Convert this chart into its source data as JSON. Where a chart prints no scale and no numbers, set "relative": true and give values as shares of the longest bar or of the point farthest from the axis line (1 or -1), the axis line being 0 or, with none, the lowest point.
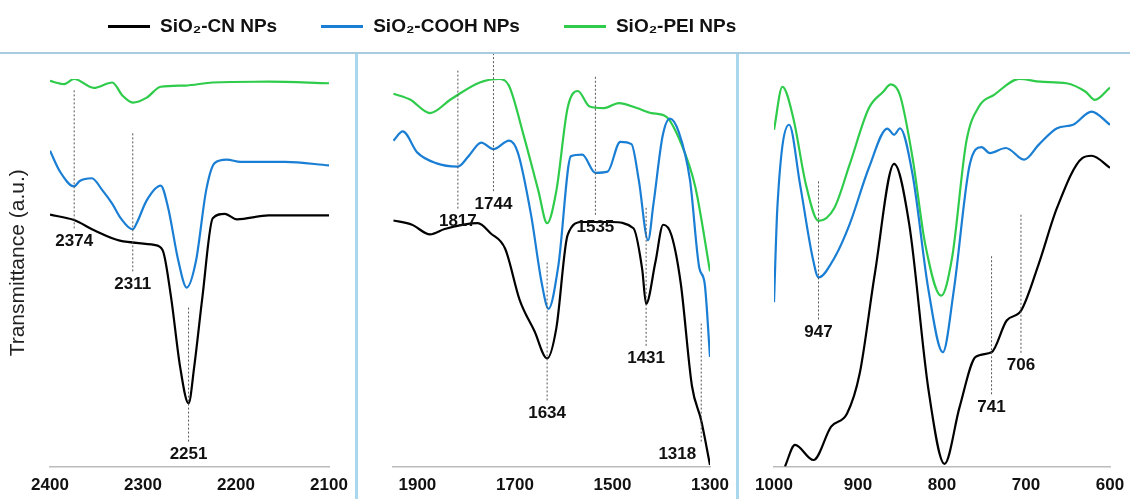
{
  "chart_data": [
    {
      "type": "line",
      "relative": true,
      "ylabel": "Transmittance (a.u.)",
      "xlim": [
        2400,
        2100
      ],
      "xticks": [
        2400,
        2300,
        2200,
        2100
      ],
      "legend": "top",
      "grid": false,
      "marker": "none",
      "line_style": "solid",
      "series": [
        {
          "name": "SiO₂-CN NPs",
          "color": "#000000",
          "x": [
            2400,
            2374,
            2352,
            2325,
            2288,
            2279,
            2270,
            2260,
            2251,
            2245,
            2236,
            2225,
            2212,
            2199,
            2165,
            2100
          ],
          "values": [
            0.65,
            0.636,
            0.609,
            0.583,
            0.572,
            0.559,
            0.44,
            0.256,
            0.163,
            0.256,
            0.44,
            0.641,
            0.652,
            0.638,
            0.648,
            0.648
          ]
        },
        {
          "name": "SiO₂-COOH NPs",
          "color": "#1a7fd4",
          "x": [
            2400,
            2389,
            2374,
            2368,
            2355,
            2344,
            2333,
            2324,
            2311,
            2307,
            2296,
            2281,
            2273,
            2262,
            2253,
            2243,
            2232,
            2223,
            2210,
            2195,
            2147,
            2100
          ],
          "values": [
            0.815,
            0.76,
            0.723,
            0.737,
            0.744,
            0.714,
            0.678,
            0.641,
            0.612,
            0.627,
            0.687,
            0.725,
            0.668,
            0.531,
            0.462,
            0.531,
            0.714,
            0.783,
            0.792,
            0.786,
            0.786,
            0.777
          ]
        },
        {
          "name": "SiO₂-PEI NPs",
          "color": "#2ecc4a",
          "x": [
            2400,
            2385,
            2374,
            2353,
            2333,
            2322,
            2311,
            2296,
            2281,
            2255,
            2225,
            2165,
            2100
          ],
          "values": [
            0.995,
            0.987,
            1.0,
            0.977,
            0.991,
            0.957,
            0.939,
            0.952,
            0.98,
            0.983,
            0.991,
            0.993,
            0.989
          ]
        }
      ],
      "annotations": [
        {
          "text": "2374",
          "x": 2374,
          "y": 0.723
        },
        {
          "text": "2311",
          "x": 2311,
          "y": 0.612
        },
        {
          "text": "2251",
          "x": 2251,
          "y": 0.163
        }
      ]
    },
    {
      "type": "line",
      "relative": true,
      "xlim": [
        1950,
        1300
      ],
      "xticks": [
        1900,
        1700,
        1500,
        1300
      ],
      "grid": false,
      "marker": "none",
      "line_style": "solid",
      "series": [
        {
          "color": "#000000",
          "x": [
            1949,
            1911,
            1874,
            1844,
            1776,
            1750,
            1720,
            1690,
            1660,
            1634,
            1615,
            1592,
            1562,
            1502,
            1457,
            1439,
            1431,
            1412,
            1396,
            1379,
            1360,
            1337,
            1318,
            1300
          ],
          "values": [
            0.635,
            0.624,
            0.599,
            0.613,
            0.628,
            0.602,
            0.562,
            0.429,
            0.35,
            0.279,
            0.358,
            0.597,
            0.631,
            0.631,
            0.615,
            0.509,
            0.42,
            0.527,
            0.624,
            0.597,
            0.473,
            0.208,
            0.119,
            0.004
          ]
        },
        {
          "color": "#1a7fd4",
          "x": [
            1949,
            1930,
            1900,
            1862,
            1817,
            1795,
            1769,
            1744,
            1712,
            1694,
            1667,
            1645,
            1631,
            1611,
            1585,
            1562,
            1535,
            1510,
            1484,
            1461,
            1446,
            1427,
            1416,
            1397,
            1382,
            1364,
            1341,
            1322,
            1311,
            1300
          ],
          "values": [
            0.841,
            0.865,
            0.81,
            0.783,
            0.774,
            0.801,
            0.836,
            0.819,
            0.841,
            0.81,
            0.65,
            0.473,
            0.407,
            0.518,
            0.801,
            0.805,
            0.758,
            0.761,
            0.838,
            0.832,
            0.739,
            0.584,
            0.677,
            0.854,
            0.898,
            0.863,
            0.739,
            0.513,
            0.473,
            0.283
          ]
        },
        {
          "color": "#2ecc4a",
          "x": [
            1949,
            1915,
            1874,
            1832,
            1772,
            1731,
            1712,
            1682,
            1652,
            1634,
            1615,
            1592,
            1571,
            1547,
            1517,
            1487,
            1450,
            1420,
            1390,
            1360,
            1330,
            1300
          ],
          "values": [
            0.962,
            0.947,
            0.912,
            0.947,
            0.991,
            1.0,
            0.982,
            0.854,
            0.712,
            0.628,
            0.712,
            0.925,
            0.969,
            0.929,
            0.925,
            0.938,
            0.925,
            0.912,
            0.903,
            0.836,
            0.721,
            0.504
          ]
        }
      ],
      "annotations": [
        {
          "text": "1817",
          "x": 1817,
          "y": 0.774
        },
        {
          "text": "1744",
          "x": 1744,
          "y": 0.819
        },
        {
          "text": "1634",
          "x": 1634,
          "y": 0.279
        },
        {
          "text": "1535",
          "x": 1535,
          "y": 0.758
        },
        {
          "text": "1431",
          "x": 1431,
          "y": 0.42
        },
        {
          "text": "1318",
          "x": 1318,
          "y": 0.119
        }
      ]
    },
    {
      "type": "line",
      "relative": true,
      "xlim": [
        1000,
        600
      ],
      "xticks": [
        1000,
        900,
        800,
        700,
        600
      ],
      "grid": false,
      "marker": "none",
      "line_style": "solid",
      "series": [
        {
          "color": "#000000",
          "x": [
            987,
            975,
            953,
            932,
            913,
            898,
            880,
            857,
            839,
            816,
            797,
            779,
            760,
            741,
            723,
            706,
            685,
            663,
            633,
            622,
            600
          ],
          "values": [
            0.0,
            0.056,
            0.017,
            0.103,
            0.137,
            0.24,
            0.497,
            0.781,
            0.625,
            0.197,
            0.007,
            0.154,
            0.283,
            0.295,
            0.377,
            0.402,
            0.522,
            0.668,
            0.796,
            0.802,
            0.771
          ]
        },
        {
          "color": "#1a7fd4",
          "x": [
            1000,
            996,
            982,
            969,
            954,
            947,
            928,
            910,
            887,
            865,
            857,
            850,
            835,
            816,
            799,
            786,
            767,
            753,
            743,
            724,
            702,
            685,
            663,
            644,
            622,
            600
          ],
          "values": [
            0.424,
            0.668,
            0.882,
            0.728,
            0.539,
            0.488,
            0.539,
            0.625,
            0.771,
            0.872,
            0.856,
            0.873,
            0.753,
            0.454,
            0.295,
            0.454,
            0.779,
            0.824,
            0.809,
            0.822,
            0.792,
            0.83,
            0.873,
            0.882,
            0.916,
            0.882
          ]
        },
        {
          "color": "#2ecc4a",
          "x": [
            1000,
            990,
            977,
            962,
            947,
            928,
            910,
            887,
            870,
            861,
            850,
            835,
            820,
            801,
            788,
            771,
            756,
            738,
            708,
            683,
            652,
            629,
            618,
            600
          ],
          "values": [
            0.869,
            0.98,
            0.899,
            0.728,
            0.634,
            0.668,
            0.779,
            0.925,
            0.967,
            0.986,
            0.958,
            0.796,
            0.574,
            0.441,
            0.539,
            0.839,
            0.929,
            0.959,
            1.0,
            0.993,
            0.989,
            0.967,
            0.946,
            0.978
          ]
        }
      ],
      "annotations": [
        {
          "text": "947",
          "x": 947,
          "y": 0.488
        },
        {
          "text": "741",
          "x": 741,
          "y": 0.295
        },
        {
          "text": "706",
          "x": 706,
          "y": 0.402
        }
      ]
    }
  ]
}
